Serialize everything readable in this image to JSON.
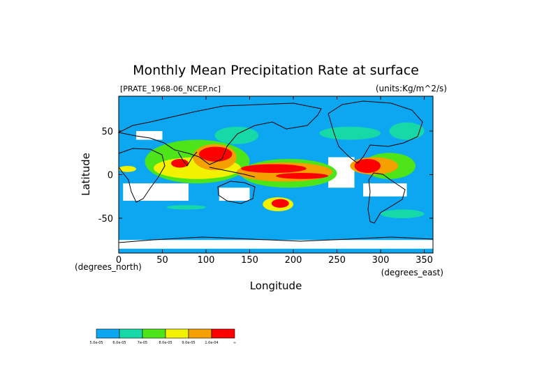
{
  "chart_data": {
    "type": "heatmap",
    "title": "Monthly Mean Precipitation Rate at surface",
    "subtitle_left": "[PRATE_1968-06_NCEP.nc]",
    "subtitle_right": "(units:Kg/m^2/s)",
    "xlabel": "Longitude",
    "ylabel": "Latitude",
    "x_unit_label": "(degrees_east)",
    "y_unit_label": "(degrees_north)",
    "xlim": [
      0,
      360
    ],
    "ylim": [
      -90,
      90
    ],
    "x_ticks": [
      0,
      50,
      100,
      150,
      200,
      250,
      300,
      350
    ],
    "y_ticks": [
      -50,
      0,
      50
    ],
    "colors": {
      "background": "#0ca7f0",
      "missing": "#ffffff",
      "level1": "#17d9a8",
      "level2": "#4de41a",
      "level3": "#f2f200",
      "level4": "#f4a000",
      "level5": "#ff0000",
      "coast": "#000000"
    },
    "colorbar": {
      "colors": [
        "#0ca7f0",
        "#17d9a8",
        "#4de41a",
        "#f2f200",
        "#f4a000",
        "#ff0000"
      ],
      "labels": [
        "5.0e-05",
        "6.0e-05",
        "7e-05",
        "8.0e-05",
        "9.0e-05",
        "1.0e-04",
        "∞"
      ]
    },
    "regions": [
      {
        "level": "level5",
        "lon": [
          92,
          130
        ],
        "lat": [
          15,
          32
        ]
      },
      {
        "level": "level5",
        "lon": [
          60,
          80
        ],
        "lat": [
          8,
          18
        ]
      },
      {
        "level": "level5",
        "lon": [
          140,
          215
        ],
        "lat": [
          2,
          12
        ]
      },
      {
        "level": "level5",
        "lon": [
          180,
          240
        ],
        "lat": [
          -5,
          2
        ]
      },
      {
        "level": "level5",
        "lon": [
          270,
          300
        ],
        "lat": [
          2,
          18
        ]
      },
      {
        "level": "level5",
        "lon": [
          175,
          195
        ],
        "lat": [
          -38,
          -28
        ]
      },
      {
        "level": "level4",
        "lon": [
          85,
          135
        ],
        "lat": [
          5,
          35
        ]
      },
      {
        "level": "level4",
        "lon": [
          135,
          245
        ],
        "lat": [
          -8,
          14
        ]
      },
      {
        "level": "level4",
        "lon": [
          265,
          320
        ],
        "lat": [
          0,
          20
        ]
      },
      {
        "level": "level3",
        "lon": [
          40,
          140
        ],
        "lat": [
          -5,
          20
        ]
      },
      {
        "level": "level3",
        "lon": [
          165,
          200
        ],
        "lat": [
          -42,
          -26
        ]
      },
      {
        "level": "level3",
        "lon": [
          0,
          20
        ],
        "lat": [
          3,
          10
        ]
      },
      {
        "level": "level2",
        "lon": [
          30,
          150
        ],
        "lat": [
          -10,
          40
        ]
      },
      {
        "level": "level2",
        "lon": [
          280,
          340
        ],
        "lat": [
          -5,
          25
        ]
      },
      {
        "level": "level2",
        "lon": [
          140,
          250
        ],
        "lat": [
          -15,
          18
        ]
      },
      {
        "level": "level1",
        "lon": [
          110,
          160
        ],
        "lat": [
          35,
          55
        ]
      },
      {
        "level": "level1",
        "lon": [
          230,
          300
        ],
        "lat": [
          40,
          55
        ]
      },
      {
        "level": "level1",
        "lon": [
          310,
          350
        ],
        "lat": [
          40,
          60
        ]
      },
      {
        "level": "level1",
        "lon": [
          300,
          350
        ],
        "lat": [
          -50,
          -40
        ]
      },
      {
        "level": "level1",
        "lon": [
          55,
          100
        ],
        "lat": [
          -40,
          -35
        ]
      }
    ],
    "missing_areas": [
      {
        "lon": [
          5,
          80
        ],
        "lat": [
          -30,
          -10
        ]
      },
      {
        "lon": [
          20,
          50
        ],
        "lat": [
          40,
          50
        ]
      },
      {
        "lon": [
          115,
          150
        ],
        "lat": [
          -30,
          -15
        ]
      },
      {
        "lon": [
          240,
          270
        ],
        "lat": [
          -15,
          20
        ]
      },
      {
        "lon": [
          280,
          330
        ],
        "lat": [
          -25,
          -10
        ]
      },
      {
        "lon": [
          0,
          360
        ],
        "lat": [
          -85,
          -75
        ]
      }
    ]
  }
}
